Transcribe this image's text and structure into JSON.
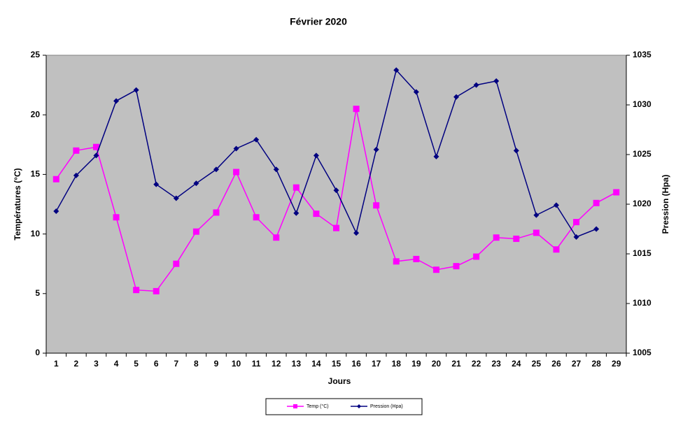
{
  "chart_data": {
    "type": "line",
    "title": "Février 2020",
    "x_label": "Jours",
    "y_label": "Températures (°C)",
    "y2_label": "Pression (Hpa)",
    "categories": [
      "1",
      "2",
      "3",
      "4",
      "5",
      "6",
      "7",
      "8",
      "9",
      "10",
      "11",
      "12",
      "13",
      "14",
      "15",
      "16",
      "17",
      "18",
      "19",
      "20",
      "21",
      "22",
      "23",
      "24",
      "25",
      "26",
      "27",
      "28",
      "29"
    ],
    "series": [
      {
        "name": "Temp (°C)",
        "color": "#ff00ff",
        "marker": "square",
        "values": [
          14.6,
          17.0,
          17.3,
          11.4,
          5.3,
          5.2,
          7.5,
          10.2,
          11.8,
          15.2,
          11.4,
          9.7,
          13.9,
          11.7,
          10.5,
          20.5,
          12.4,
          7.7,
          7.9,
          7.0,
          7.3,
          8.1,
          9.7,
          9.6,
          10.1,
          8.7,
          11.0,
          12.6,
          13.5
        ]
      },
      {
        "name": "Pression (Hpa)",
        "color": "#000080",
        "marker": "diamond",
        "axis": "y2",
        "values": [
          1019.3,
          1022.9,
          1024.9,
          1030.4,
          1031.5,
          1022.0,
          1020.6,
          1022.1,
          1023.5,
          1025.6,
          1026.5,
          1023.5,
          1019.1,
          1024.9,
          1021.4,
          1017.1,
          1025.5,
          1033.5,
          1031.3,
          1024.8,
          1030.8,
          1032.0,
          1032.4,
          1025.4,
          1018.9,
          1019.9,
          1016.7,
          1017.5,
          null
        ]
      }
    ],
    "ylim": [
      0,
      25
    ],
    "yticks": [
      0,
      5,
      10,
      15,
      20,
      25
    ],
    "y2lim": [
      1005,
      1035
    ],
    "y2ticks": [
      1005,
      1010,
      1015,
      1020,
      1025,
      1030,
      1035
    ],
    "plot_background": "#c0c0c0",
    "legend": "bottom"
  }
}
